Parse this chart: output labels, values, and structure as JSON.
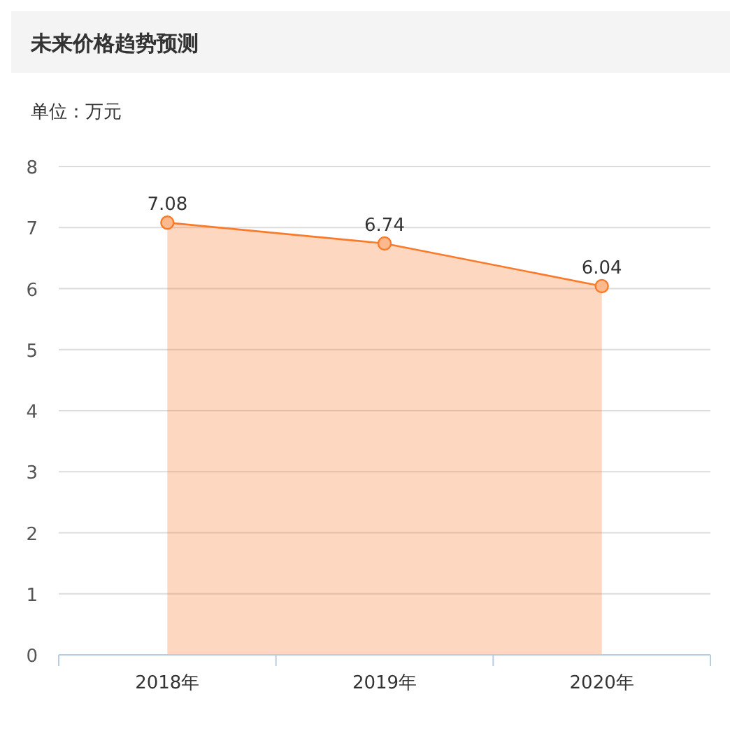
{
  "chart_data": {
    "type": "area",
    "title": "未来价格趋势预测",
    "ylabel": "单位：万元",
    "categories": [
      "2018年",
      "2019年",
      "2020年"
    ],
    "series": [
      {
        "color": "#f97b2a",
        "values": [
          7.08,
          6.74,
          6.04
        ]
      }
    ],
    "ylim": [
      0,
      8
    ],
    "yticks": [
      0,
      1,
      2,
      3,
      4,
      5,
      6,
      7,
      8
    ],
    "grid": "y",
    "marker": "circle",
    "data_labels": true
  }
}
